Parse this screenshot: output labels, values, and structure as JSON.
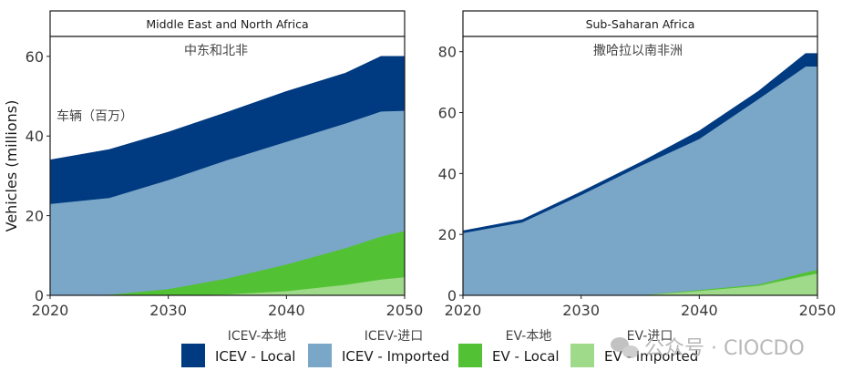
{
  "chart_data": [
    {
      "type": "area",
      "stacked": true,
      "title": "Middle East and North Africa",
      "subtitle_cn": "中东和北非",
      "annotation_cn": "车辆（百万）",
      "xlabel": "",
      "ylabel": "Vehicles (millions)",
      "x": [
        2020,
        2025,
        2030,
        2035,
        2040,
        2045,
        2048,
        2050
      ],
      "xlim": [
        2020,
        2050
      ],
      "ylim": [
        0,
        65
      ],
      "xticks": [
        2020,
        2030,
        2040,
        2050
      ],
      "yticks": [
        0,
        20,
        40,
        60
      ],
      "grid": false,
      "series": [
        {
          "name": "EV - Imported",
          "values": [
            0,
            0,
            0,
            0.3,
            1.1,
            2.7,
            4.0,
            4.6
          ]
        },
        {
          "name": "EV - Local",
          "values": [
            0,
            0.2,
            1.6,
            4.0,
            6.7,
            9.2,
            10.8,
            11.6
          ]
        },
        {
          "name": "ICEV - Imported",
          "values": [
            23,
            24.3,
            27.4,
            29.7,
            30.8,
            31.3,
            31.4,
            30.2
          ]
        },
        {
          "name": "ICEV - Local",
          "values": [
            11,
            12.1,
            12.0,
            12.0,
            12.6,
            12.6,
            13.8,
            13.6
          ]
        }
      ]
    },
    {
      "type": "area",
      "stacked": true,
      "title": "Sub-Saharan Africa",
      "subtitle_cn": "撒哈拉以南非洲",
      "xlabel": "",
      "ylabel": "",
      "x": [
        2020,
        2025,
        2030,
        2035,
        2040,
        2045,
        2049,
        2050
      ],
      "xlim": [
        2020,
        2050
      ],
      "ylim": [
        0,
        85
      ],
      "xticks": [
        2020,
        2030,
        2040,
        2050
      ],
      "yticks": [
        0,
        20,
        40,
        60,
        80
      ],
      "grid": false,
      "series": [
        {
          "name": "EV - Imported",
          "values": [
            0,
            0,
            0,
            0.05,
            1.5,
            3.2,
            6.5,
            7.2
          ]
        },
        {
          "name": "EV - Local",
          "values": [
            0,
            0,
            0,
            0.05,
            0.3,
            0.4,
            1.1,
            1.2
          ]
        },
        {
          "name": "ICEV - Imported",
          "values": [
            20.5,
            24,
            33,
            42.4,
            49.6,
            60.9,
            67.6,
            66.8
          ]
        },
        {
          "name": "ICEV - Local",
          "values": [
            0.7,
            0.8,
            1.0,
            1.1,
            2.6,
            2.5,
            4.2,
            4.2
          ]
        }
      ]
    }
  ],
  "colors": {
    "ICEV - Local": "#003a80",
    "ICEV - Imported": "#7aa6c8",
    "EV - Local": "#52c234",
    "EV - Imported": "#9fd98a"
  },
  "legend": {
    "position": "bottom",
    "items": [
      {
        "label": "ICEV - Local",
        "label_cn": "ICEV-本地"
      },
      {
        "label": "ICEV - Imported",
        "label_cn": "ICEV-进口"
      },
      {
        "label": "EV - Local",
        "label_cn": "EV-本地"
      },
      {
        "label": "EV - Imported",
        "label_cn": "EV-进口"
      }
    ]
  },
  "watermark": "公众号 · CIOCDO"
}
